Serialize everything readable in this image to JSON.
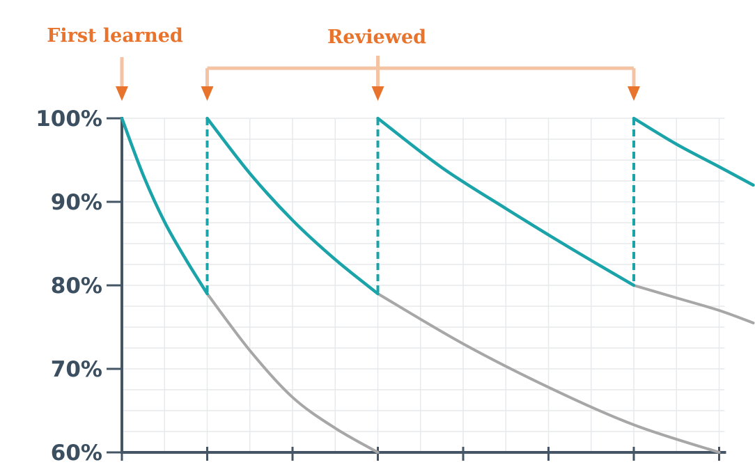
{
  "chart_data": {
    "type": "line",
    "title": "",
    "xlabel": "",
    "ylabel": "",
    "ylim": [
      60,
      100
    ],
    "xlim": [
      0,
      7.4
    ],
    "yticks": [
      {
        "value": 100,
        "label": "100%"
      },
      {
        "value": 90,
        "label": "90%"
      },
      {
        "value": 80,
        "label": "80%"
      },
      {
        "value": 70,
        "label": "70%"
      },
      {
        "value": 60,
        "label": "60%"
      }
    ],
    "xticks": [
      0,
      1,
      2,
      3,
      4,
      5,
      6,
      7
    ],
    "grid": true,
    "annotations": {
      "first_learned": {
        "label": "First learned",
        "x": 0
      },
      "reviewed": {
        "label": "Reviewed",
        "x": [
          1,
          3,
          6
        ]
      }
    },
    "series": [
      {
        "role": "retention-with-reviews",
        "color": "#1aa3a9",
        "segments": [
          {
            "start": 0,
            "end": 1,
            "points": [
              [
                0,
                100
              ],
              [
                0.25,
                93.2
              ],
              [
                0.5,
                87.6
              ],
              [
                0.75,
                83.1
              ],
              [
                1,
                79
              ]
            ]
          },
          {
            "start": 1,
            "end": 3,
            "points": [
              [
                1,
                100
              ],
              [
                1.5,
                93.4
              ],
              [
                2,
                87.8
              ],
              [
                2.5,
                83.1
              ],
              [
                3,
                79
              ]
            ]
          },
          {
            "start": 3,
            "end": 6,
            "points": [
              [
                3,
                100
              ],
              [
                3.75,
                94.1
              ],
              [
                4.5,
                89.2
              ],
              [
                5.25,
                84.5
              ],
              [
                6,
                80
              ]
            ]
          },
          {
            "start": 6,
            "end": 7.4,
            "points": [
              [
                6,
                100
              ],
              [
                6.5,
                96.9
              ],
              [
                7,
                94.2
              ],
              [
                7.4,
                92
              ]
            ]
          }
        ]
      },
      {
        "role": "forgetting-without-review",
        "color": "#a7a7a7",
        "segments": [
          {
            "start": 1,
            "end": 3,
            "points": [
              [
                1,
                79
              ],
              [
                1.5,
                72.2
              ],
              [
                2,
                66.6
              ],
              [
                2.5,
                62.9
              ],
              [
                3,
                60
              ]
            ]
          },
          {
            "start": 3,
            "end": 7,
            "points": [
              [
                3,
                79
              ],
              [
                4,
                73
              ],
              [
                5,
                67.8
              ],
              [
                6,
                63.3
              ],
              [
                7,
                60
              ]
            ]
          },
          {
            "start": 6,
            "end": 7.4,
            "points": [
              [
                6,
                80
              ],
              [
                6.5,
                78.5
              ],
              [
                7,
                77
              ],
              [
                7.4,
                75.5
              ]
            ]
          }
        ]
      }
    ],
    "colors": {
      "teal": "#1aa3a9",
      "gray": "#a7a7a7",
      "orange": "#e8732c",
      "orange_light": "#f4c3a4",
      "axis": "#455566",
      "grid": "#e7e9ec",
      "label": "#3b4f60"
    }
  }
}
